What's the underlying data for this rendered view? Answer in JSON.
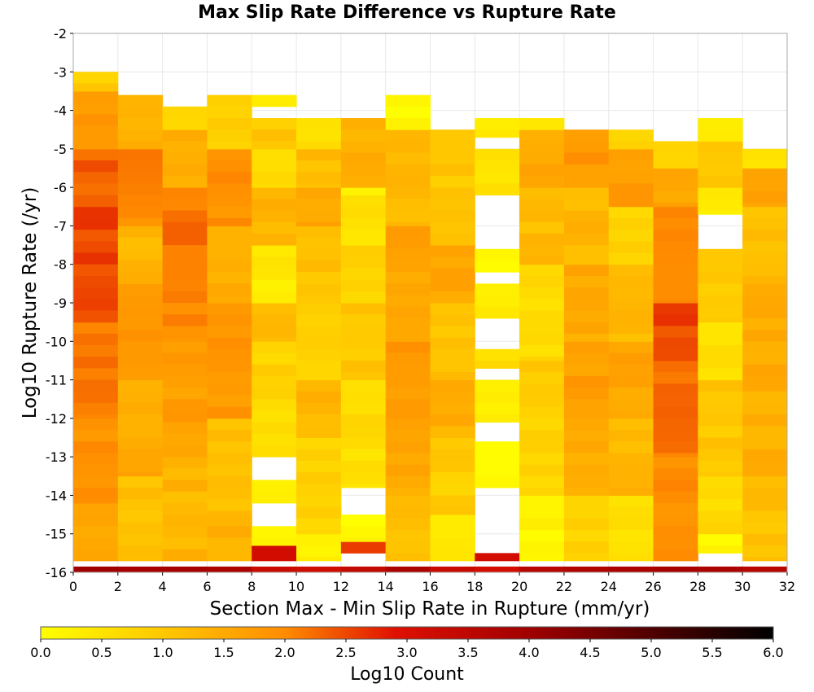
{
  "chart_data": {
    "type": "heatmap",
    "title": "Max Slip Rate Difference vs Rupture Rate",
    "xlabel": "Section Max - Min Slip Rate in Rupture (mm/yr)",
    "ylabel": "Log10 Rupture Rate (/yr)",
    "xlim": [
      0,
      32
    ],
    "ylim": [
      -16,
      -2
    ],
    "x_ticks": [
      "0",
      "2",
      "4",
      "6",
      "8",
      "10",
      "12",
      "14",
      "16",
      "18",
      "20",
      "22",
      "24",
      "26",
      "28",
      "30",
      "32"
    ],
    "y_ticks": [
      "-2",
      "-3",
      "-4",
      "-5",
      "-6",
      "-7",
      "-8",
      "-9",
      "-10",
      "-11",
      "-12",
      "-13",
      "-14",
      "-15",
      "-16"
    ],
    "colorbar": {
      "label": "Log10 Count",
      "range": [
        0,
        6
      ],
      "ticks": [
        "0.0",
        "0.5",
        "1.0",
        "1.5",
        "2.0",
        "2.5",
        "3.0",
        "3.5",
        "4.0",
        "4.5",
        "5.0",
        "5.5",
        "6.0"
      ],
      "stops": [
        {
          "v": 0.0,
          "color": "#ffff00"
        },
        {
          "v": 1.0,
          "color": "#ffc800"
        },
        {
          "v": 2.0,
          "color": "#ff8c00"
        },
        {
          "v": 2.9,
          "color": "#e01000"
        },
        {
          "v": 4.0,
          "color": "#a00000"
        },
        {
          "v": 5.0,
          "color": "#500000"
        },
        {
          "v": 6.0,
          "color": "#000000"
        }
      ]
    },
    "x_bin_width": 2,
    "y_bin_height": 0.3,
    "y_bin_start": -16,
    "bottom_row_values": [
      4.0,
      3.9,
      3.9,
      3.8,
      3.3,
      3.2,
      3.4,
      3.8,
      3.3,
      3.1,
      3.6,
      3.7,
      3.8,
      3.9,
      3.8,
      3.6
    ],
    "columns": [
      {
        "x0": 0,
        "top": -3.0,
        "segments": [
          [
            -15.7,
            -14.2,
            1.6
          ],
          [
            -14.2,
            -12.0,
            1.9
          ],
          [
            -12.0,
            -9.5,
            2.2
          ],
          [
            -9.5,
            -6.5,
            2.5
          ],
          [
            -6.5,
            -5.0,
            2.3
          ],
          [
            -5.0,
            -3.5,
            1.8
          ],
          [
            -3.5,
            -3.0,
            0.9
          ]
        ]
      },
      {
        "x0": 2,
        "top": -3.6,
        "segments": [
          [
            -15.7,
            -13.5,
            1.1
          ],
          [
            -13.5,
            -11.0,
            1.5
          ],
          [
            -11.0,
            -8.5,
            1.8
          ],
          [
            -8.5,
            -7.0,
            1.3
          ],
          [
            -7.0,
            -5.0,
            2.0
          ],
          [
            -5.0,
            -3.6,
            1.4
          ]
        ]
      },
      {
        "x0": 4,
        "top": -3.9,
        "segments": [
          [
            -15.7,
            -13.0,
            1.3
          ],
          [
            -13.0,
            -10.0,
            1.7
          ],
          [
            -10.0,
            -7.8,
            2.0
          ],
          [
            -7.8,
            -6.0,
            2.2
          ],
          [
            -6.0,
            -4.5,
            1.5
          ],
          [
            -4.5,
            -3.9,
            0.8
          ]
        ]
      },
      {
        "x0": 6,
        "top": -3.6,
        "segments": [
          [
            -15.7,
            -14.5,
            1.4
          ],
          [
            -14.5,
            -12.0,
            1.2
          ],
          [
            -12.0,
            -9.0,
            1.8
          ],
          [
            -9.0,
            -7.0,
            1.5
          ],
          [
            -7.0,
            -5.0,
            1.9
          ],
          [
            -5.0,
            -3.6,
            0.8
          ]
        ]
      },
      {
        "x0": 8,
        "top": -4.2,
        "segments": [
          [
            -15.7,
            -15.3,
            3.0
          ],
          [
            -15.3,
            -14.8,
            0.2
          ],
          [
            -14.8,
            -14.2,
            -1
          ],
          [
            -14.2,
            -13.6,
            0.2
          ],
          [
            -13.6,
            -13.0,
            -1
          ],
          [
            -13.0,
            -11.5,
            0.5
          ],
          [
            -11.5,
            -10.0,
            0.8
          ],
          [
            -10.0,
            -9.0,
            1.2
          ],
          [
            -9.0,
            -7.5,
            0.4
          ],
          [
            -7.5,
            -6.0,
            1.3
          ],
          [
            -6.0,
            -5.0,
            0.7
          ],
          [
            -5.0,
            -4.2,
            1.0
          ]
        ]
      },
      {
        "x0": 8,
        "top": -3.6,
        "segments": [
          [
            -3.9,
            -3.6,
            0.5
          ]
        ]
      },
      {
        "x0": 10,
        "top": -4.2,
        "segments": [
          [
            -15.7,
            -15.0,
            0.3
          ],
          [
            -15.0,
            -12.5,
            0.8
          ],
          [
            -12.5,
            -11.0,
            1.3
          ],
          [
            -11.0,
            -9.0,
            0.9
          ],
          [
            -9.0,
            -7.0,
            1.1
          ],
          [
            -7.0,
            -6.0,
            1.6
          ],
          [
            -6.0,
            -5.0,
            1.2
          ],
          [
            -5.0,
            -4.2,
            0.6
          ]
        ]
      },
      {
        "x0": 12,
        "top": -4.2,
        "segments": [
          [
            -15.5,
            -15.2,
            2.6
          ],
          [
            -15.2,
            -14.5,
            0.1
          ],
          [
            -14.5,
            -13.8,
            -1
          ],
          [
            -13.8,
            -12.5,
            0.5
          ],
          [
            -12.5,
            -11.0,
            0.7
          ],
          [
            -11.0,
            -9.0,
            1.0
          ],
          [
            -9.0,
            -7.5,
            0.8
          ],
          [
            -7.5,
            -6.2,
            0.5
          ],
          [
            -6.2,
            -6.0,
            0.2
          ],
          [
            -6.0,
            -4.2,
            1.4
          ]
        ]
      },
      {
        "x0": 14,
        "top": -3.6,
        "segments": [
          [
            -15.7,
            -14.0,
            1.2
          ],
          [
            -14.0,
            -12.0,
            1.5
          ],
          [
            -12.0,
            -10.0,
            1.8
          ],
          [
            -10.0,
            -7.0,
            1.6
          ],
          [
            -7.0,
            -4.5,
            1.3
          ],
          [
            -4.5,
            -3.6,
            0.2
          ]
        ]
      },
      {
        "x0": 16,
        "top": -4.5,
        "segments": [
          [
            -15.7,
            -14.5,
            0.5
          ],
          [
            -14.5,
            -12.5,
            0.9
          ],
          [
            -12.5,
            -11.0,
            1.4
          ],
          [
            -11.0,
            -9.0,
            1.1
          ],
          [
            -9.0,
            -7.5,
            1.6
          ],
          [
            -7.5,
            -6.0,
            1.2
          ],
          [
            -6.0,
            -4.5,
            1.0
          ]
        ]
      },
      {
        "x0": 18,
        "top": -4.2,
        "segments": [
          [
            -15.7,
            -15.5,
            3.2
          ],
          [
            -15.5,
            -13.8,
            -1
          ],
          [
            -13.8,
            -12.6,
            0.2
          ],
          [
            -12.6,
            -12.1,
            -1
          ],
          [
            -12.1,
            -11.0,
            0.4
          ],
          [
            -11.0,
            -10.7,
            -1
          ],
          [
            -10.7,
            -10.2,
            0.6
          ],
          [
            -10.2,
            -9.4,
            -1
          ],
          [
            -9.4,
            -8.5,
            0.3
          ],
          [
            -8.5,
            -8.2,
            -1
          ],
          [
            -8.2,
            -7.6,
            0.1
          ],
          [
            -7.6,
            -6.2,
            -1
          ],
          [
            -6.2,
            -5.0,
            0.5
          ],
          [
            -5.0,
            -4.7,
            -1
          ],
          [
            -4.7,
            -4.2,
            0.4
          ]
        ]
      },
      {
        "x0": 20,
        "top": -4.2,
        "segments": [
          [
            -15.7,
            -14.0,
            0.2
          ],
          [
            -14.0,
            -12.0,
            0.8
          ],
          [
            -12.0,
            -10.5,
            1.0
          ],
          [
            -10.5,
            -8.0,
            0.7
          ],
          [
            -8.0,
            -6.0,
            1.2
          ],
          [
            -6.0,
            -4.5,
            1.5
          ],
          [
            -4.5,
            -4.2,
            0.3
          ]
        ]
      },
      {
        "x0": 22,
        "top": -4.5,
        "segments": [
          [
            -15.7,
            -14.0,
            0.8
          ],
          [
            -14.0,
            -12.0,
            1.5
          ],
          [
            -12.0,
            -10.0,
            1.7
          ],
          [
            -10.0,
            -8.0,
            1.5
          ],
          [
            -8.0,
            -6.0,
            1.3
          ],
          [
            -6.0,
            -4.5,
            1.8
          ]
        ]
      },
      {
        "x0": 24,
        "top": -4.5,
        "segments": [
          [
            -15.7,
            -14.0,
            0.6
          ],
          [
            -14.0,
            -12.0,
            1.3
          ],
          [
            -12.0,
            -10.0,
            1.6
          ],
          [
            -10.0,
            -8.0,
            1.2
          ],
          [
            -8.0,
            -6.5,
            0.8
          ],
          [
            -6.5,
            -5.0,
            1.7
          ],
          [
            -5.0,
            -4.5,
            0.9
          ]
        ]
      },
      {
        "x0": 26,
        "top": -4.8,
        "segments": [
          [
            -15.7,
            -13.0,
            1.9
          ],
          [
            -13.0,
            -10.5,
            2.2
          ],
          [
            -10.5,
            -9.0,
            2.5
          ],
          [
            -9.0,
            -6.5,
            2.1
          ],
          [
            -6.5,
            -5.5,
            1.6
          ],
          [
            -5.5,
            -4.8,
            0.9
          ]
        ]
      },
      {
        "x0": 28,
        "top": -4.2,
        "segments": [
          [
            -15.5,
            -15.0,
            0.2
          ],
          [
            -15.0,
            -13.5,
            0.7
          ],
          [
            -13.5,
            -11.0,
            1.0
          ],
          [
            -11.0,
            -9.5,
            0.6
          ],
          [
            -9.5,
            -7.6,
            0.9
          ],
          [
            -7.6,
            -6.7,
            -1
          ],
          [
            -6.7,
            -6.0,
            0.3
          ],
          [
            -6.0,
            -4.8,
            0.9
          ],
          [
            -4.8,
            -4.2,
            0.5
          ]
        ]
      },
      {
        "x0": 30,
        "top": -5.0,
        "segments": [
          [
            -15.7,
            -13.5,
            1.1
          ],
          [
            -13.5,
            -11.0,
            1.4
          ],
          [
            -11.0,
            -8.5,
            1.5
          ],
          [
            -8.5,
            -6.5,
            1.2
          ],
          [
            -6.5,
            -5.5,
            1.6
          ],
          [
            -5.5,
            -5.0,
            0.6
          ]
        ]
      }
    ]
  }
}
